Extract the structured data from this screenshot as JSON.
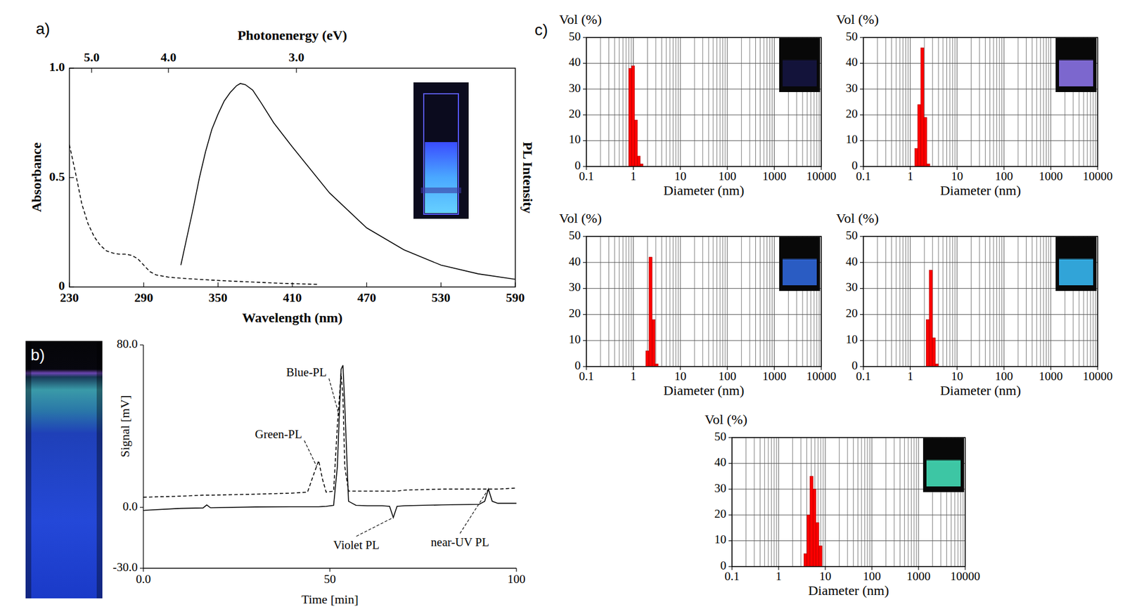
{
  "chart_data": [
    {
      "type": "line",
      "panel_label": "a)",
      "x_label": "Wavelength (nm)",
      "y_label": "Absorbance",
      "y2_label": "PL Intensity",
      "x2_label": "Photonenergy (eV)",
      "xlim": [
        230,
        590
      ],
      "xticks": [
        230,
        290,
        350,
        410,
        470,
        530,
        590
      ],
      "ylim": [
        0,
        1.0
      ],
      "yticks": [
        0,
        0.5,
        {
          "value": 1.0,
          "label": "1.0"
        }
      ],
      "x2ticks": [
        {
          "value": 5.0,
          "label": "5.0"
        },
        {
          "value": 4.0,
          "label": "4.0"
        },
        {
          "value": 3.0,
          "label": "3.0"
        }
      ],
      "y2lim": [
        0,
        1.0
      ],
      "series": [
        {
          "color": "#000000",
          "line_style": "dashed",
          "x": [
            230,
            235,
            240,
            245,
            250,
            255,
            260,
            265,
            270,
            275,
            280,
            285,
            290,
            295,
            300,
            310,
            320,
            340,
            360,
            380,
            400,
            430
          ],
          "values": [
            0.65,
            0.52,
            0.38,
            0.29,
            0.23,
            0.19,
            0.165,
            0.155,
            0.15,
            0.15,
            0.145,
            0.13,
            0.1,
            0.07,
            0.055,
            0.045,
            0.04,
            0.033,
            0.027,
            0.022,
            0.017,
            0.012
          ]
        },
        {
          "color": "#000000",
          "line_style": "solid",
          "axis": "y2",
          "x": [
            320,
            325,
            330,
            335,
            340,
            345,
            350,
            355,
            360,
            365,
            368,
            372,
            378,
            385,
            395,
            410,
            420,
            440,
            470,
            500,
            530,
            560,
            590
          ],
          "values": [
            0.1,
            0.23,
            0.36,
            0.5,
            0.62,
            0.72,
            0.79,
            0.85,
            0.89,
            0.92,
            0.93,
            0.925,
            0.9,
            0.84,
            0.75,
            0.64,
            0.57,
            0.43,
            0.27,
            0.17,
            0.1,
            0.06,
            0.035
          ]
        }
      ]
    },
    {
      "type": "line",
      "panel_label": "b)",
      "x_label": "Time [min]",
      "y_label": "Signal [mV]",
      "xlim": [
        0,
        100
      ],
      "xticks": [
        {
          "value": 0,
          "label": "0.0"
        },
        50,
        100
      ],
      "ylim": [
        -30,
        80
      ],
      "yticks": [
        {
          "value": -30,
          "label": "-30.0"
        },
        {
          "value": 0,
          "label": "0.0"
        },
        {
          "value": 80,
          "label": "80.0"
        }
      ],
      "x": [
        0,
        10,
        16,
        17,
        18,
        30,
        40,
        44,
        46,
        47,
        48,
        49,
        51,
        52,
        53,
        53.5,
        54,
        55,
        57,
        60,
        64,
        66,
        67,
        68,
        70,
        80,
        90,
        91.5,
        92.5,
        93.5,
        95,
        100
      ],
      "series": [
        {
          "color": "#000000",
          "line_style": "solid",
          "values": [
            -1.5,
            -0.5,
            -0.3,
            1.2,
            -0.2,
            0.2,
            0.3,
            0.3,
            0.3,
            0.3,
            0.4,
            0.5,
            1,
            20,
            68,
            70,
            50,
            3,
            1,
            0.8,
            0.8,
            0.5,
            -5,
            0.5,
            0.8,
            1.2,
            1.5,
            3,
            9,
            3,
            2,
            2
          ]
        },
        {
          "color": "#000000",
          "line_style": "dashed",
          "values": [
            5,
            5.5,
            6,
            6,
            6,
            6.5,
            7,
            7.5,
            18,
            23,
            14,
            7.5,
            8,
            40,
            66,
            55,
            20,
            8,
            8,
            8,
            8,
            8,
            8,
            8,
            8.5,
            9,
            9,
            9,
            9,
            9,
            9,
            9.5
          ]
        }
      ],
      "annotations": [
        {
          "text": "Blue-PL",
          "x": 52.5,
          "y": 45
        },
        {
          "text": "Green-PL",
          "x": 46.5,
          "y": 20
        },
        {
          "text": "Violet PL",
          "x": 67,
          "y": -5
        },
        {
          "text": "near-UV PL",
          "x": 92.5,
          "y": 9
        }
      ]
    },
    {
      "type": "histogram",
      "panel_label": "c)",
      "x_label": "Diameter (nm)",
      "y_label": "Vol (%)",
      "log": "x",
      "grid": true,
      "color": "#ff0000",
      "xlim": [
        0.1,
        10000
      ],
      "xticks": [
        0.1,
        1,
        10,
        100,
        1000,
        10000
      ],
      "ylim": [
        0,
        50
      ],
      "yticks": [
        0,
        10,
        20,
        30,
        40,
        50
      ],
      "bins": [
        0.8,
        0.92,
        1.06,
        1.22,
        1.4,
        1.6
      ],
      "values": [
        38,
        39,
        18,
        4,
        1
      ]
    },
    {
      "type": "histogram",
      "x_label": "Diameter (nm)",
      "y_label": "Vol (%)",
      "log": "x",
      "grid": true,
      "color": "#ff0000",
      "xlim": [
        0.1,
        10000
      ],
      "xticks": [
        0.1,
        1,
        10,
        100,
        1000,
        10000
      ],
      "ylim": [
        0,
        50
      ],
      "yticks": [
        0,
        10,
        20,
        30,
        40,
        50
      ],
      "bins": [
        1.25,
        1.45,
        1.68,
        1.95,
        2.26,
        2.62
      ],
      "values": [
        7,
        24,
        46,
        19,
        1
      ]
    },
    {
      "type": "histogram",
      "x_label": "Diameter (nm)",
      "y_label": "Vol (%)",
      "log": "x",
      "grid": true,
      "color": "#ff0000",
      "xlim": [
        0.1,
        10000
      ],
      "xticks": [
        0.1,
        1,
        10,
        100,
        1000,
        10000
      ],
      "ylim": [
        0,
        50
      ],
      "yticks": [
        0,
        10,
        20,
        30,
        40,
        50
      ],
      "bins": [
        1.85,
        2.15,
        2.5,
        2.9,
        3.36
      ],
      "values": [
        6,
        42,
        18,
        1
      ]
    },
    {
      "type": "histogram",
      "x_label": "Diameter (nm)",
      "y_label": "Vol (%)",
      "log": "x",
      "grid": true,
      "color": "#ff0000",
      "xlim": [
        0.1,
        10000
      ],
      "xticks": [
        0.1,
        1,
        10,
        100,
        1000,
        10000
      ],
      "ylim": [
        0,
        50
      ],
      "yticks": [
        0,
        10,
        20,
        30,
        40,
        50
      ],
      "bins": [
        2.2,
        2.55,
        2.96,
        3.43,
        3.98
      ],
      "values": [
        18,
        37,
        11,
        1
      ]
    },
    {
      "type": "histogram",
      "x_label": "Diameter (nm)",
      "y_label": "Vol (%)",
      "log": "x",
      "grid": true,
      "color": "#ff0000",
      "xlim": [
        0.1,
        10000
      ],
      "xticks": [
        0.1,
        1,
        10,
        100,
        1000,
        10000
      ],
      "ylim": [
        0,
        50
      ],
      "yticks": [
        0,
        10,
        20,
        30,
        40,
        50
      ],
      "bins": [
        3.5,
        4.05,
        4.7,
        5.45,
        6.3,
        7.3,
        8.5
      ],
      "values": [
        5,
        20,
        35,
        30,
        17,
        8
      ]
    }
  ]
}
